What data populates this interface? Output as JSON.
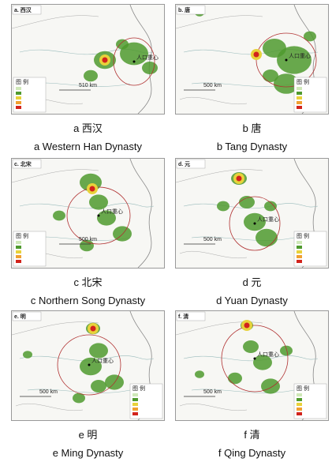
{
  "panels": [
    {
      "tag": "a. 西汉",
      "caption_cn": "a 西汉",
      "caption_en": "a Western Han Dynasty",
      "scale": "510 km",
      "legend_title": "图 例",
      "center_label": "人口重心"
    },
    {
      "tag": "b. 唐",
      "caption_cn": "b 唐",
      "caption_en": "b Tang Dynasty",
      "scale": "500 km",
      "legend_title": "图 例",
      "center_label": "人口重心"
    },
    {
      "tag": "c. 北宋",
      "caption_cn": "c 北宋",
      "caption_en": "c Northern Song Dynasty",
      "scale": "500 km",
      "legend_title": "图 例",
      "center_label": "人口重心"
    },
    {
      "tag": "d. 元",
      "caption_cn": "d 元",
      "caption_en": "d Yuan Dynasty",
      "scale": "500 km",
      "legend_title": "图 例",
      "center_label": "人口重心"
    },
    {
      "tag": "e. 明",
      "caption_cn": "e 明",
      "caption_en": "e Ming Dynasty",
      "scale": "500 km",
      "legend_title": "图 例",
      "center_label": "人口重心"
    },
    {
      "tag": "f. 清",
      "caption_cn": "f 清",
      "caption_en": "f Qing Dynasty",
      "scale": "500 km",
      "legend_title": "图 例",
      "center_label": "人口重心"
    }
  ]
}
